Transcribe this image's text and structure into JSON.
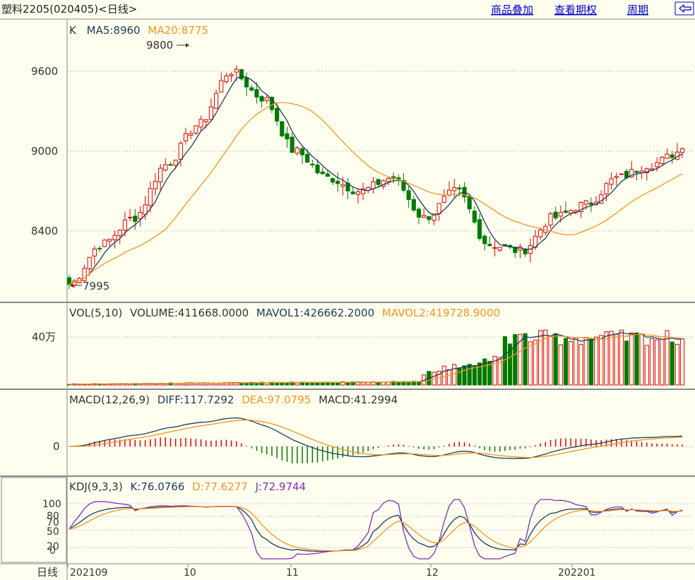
{
  "header": {
    "title": "塑料2205(020405)<日线>",
    "links": [
      "商品叠加",
      "查看期权",
      "周期"
    ],
    "back_icon": "back-arrow-icon"
  },
  "colors": {
    "bg": "#fffff0",
    "grid": "#c8c8c8",
    "up": "#e00000",
    "down": "#007a00",
    "ma5": "#1c3a5a",
    "ma20": "#f7941d",
    "link": "#0000cc",
    "kdj_j": "#7b2fb5"
  },
  "kline": {
    "label": "K",
    "ma5_label": "MA5:8960",
    "ma20_label": "MA20:8775",
    "y_ticks": [
      "9600",
      "9000",
      "8400"
    ],
    "annot_high": "9800",
    "annot_low": "7995"
  },
  "volume": {
    "label": "VOL(5,10)",
    "volume_label": "VOLUME:411668.0000",
    "mavol1_label": "MAVOL1:426662.2000",
    "mavol2_label": "MAVOL2:419728.9000",
    "y_tick": "40万"
  },
  "macd": {
    "label": "MACD(12,26,9)",
    "diff_label": "DIFF:117.7292",
    "dea_label": "DEA:97.0795",
    "macd_label": "MACD:41.2994",
    "y_tick": "0"
  },
  "kdj": {
    "label": "KDJ(9,3,3)",
    "k_label": "K:76.0766",
    "d_label": "D:77.6277",
    "j_label": "J:72.9744",
    "y_ticks": [
      "100",
      "80",
      "70",
      "50",
      "20",
      "0"
    ]
  },
  "x_axis": {
    "row_label": "日线",
    "ticks": [
      "202109",
      "10",
      "11",
      "12",
      "202201"
    ]
  },
  "chart_data": {
    "type": "candlestick",
    "x_range": [
      "202109",
      "202204"
    ],
    "price_ylim": [
      8000,
      9800
    ],
    "close_keypoints": [
      8000,
      8300,
      8500,
      8900,
      9200,
      9600,
      9400,
      9000,
      8800,
      8700,
      8800,
      8500,
      8700,
      8300,
      8250,
      8500,
      8600,
      8800,
      8900,
      9000
    ],
    "latest": {
      "ma5": 8960,
      "ma20": 8775,
      "volume": 411668.0,
      "mavol1": 426662.2,
      "mavol2": 419728.9,
      "diff": 117.7292,
      "dea": 97.0795,
      "macd": 41.2994,
      "k": 76.0766,
      "d": 77.6277,
      "j": 72.9744
    },
    "high": 9800,
    "low": 7995
  }
}
